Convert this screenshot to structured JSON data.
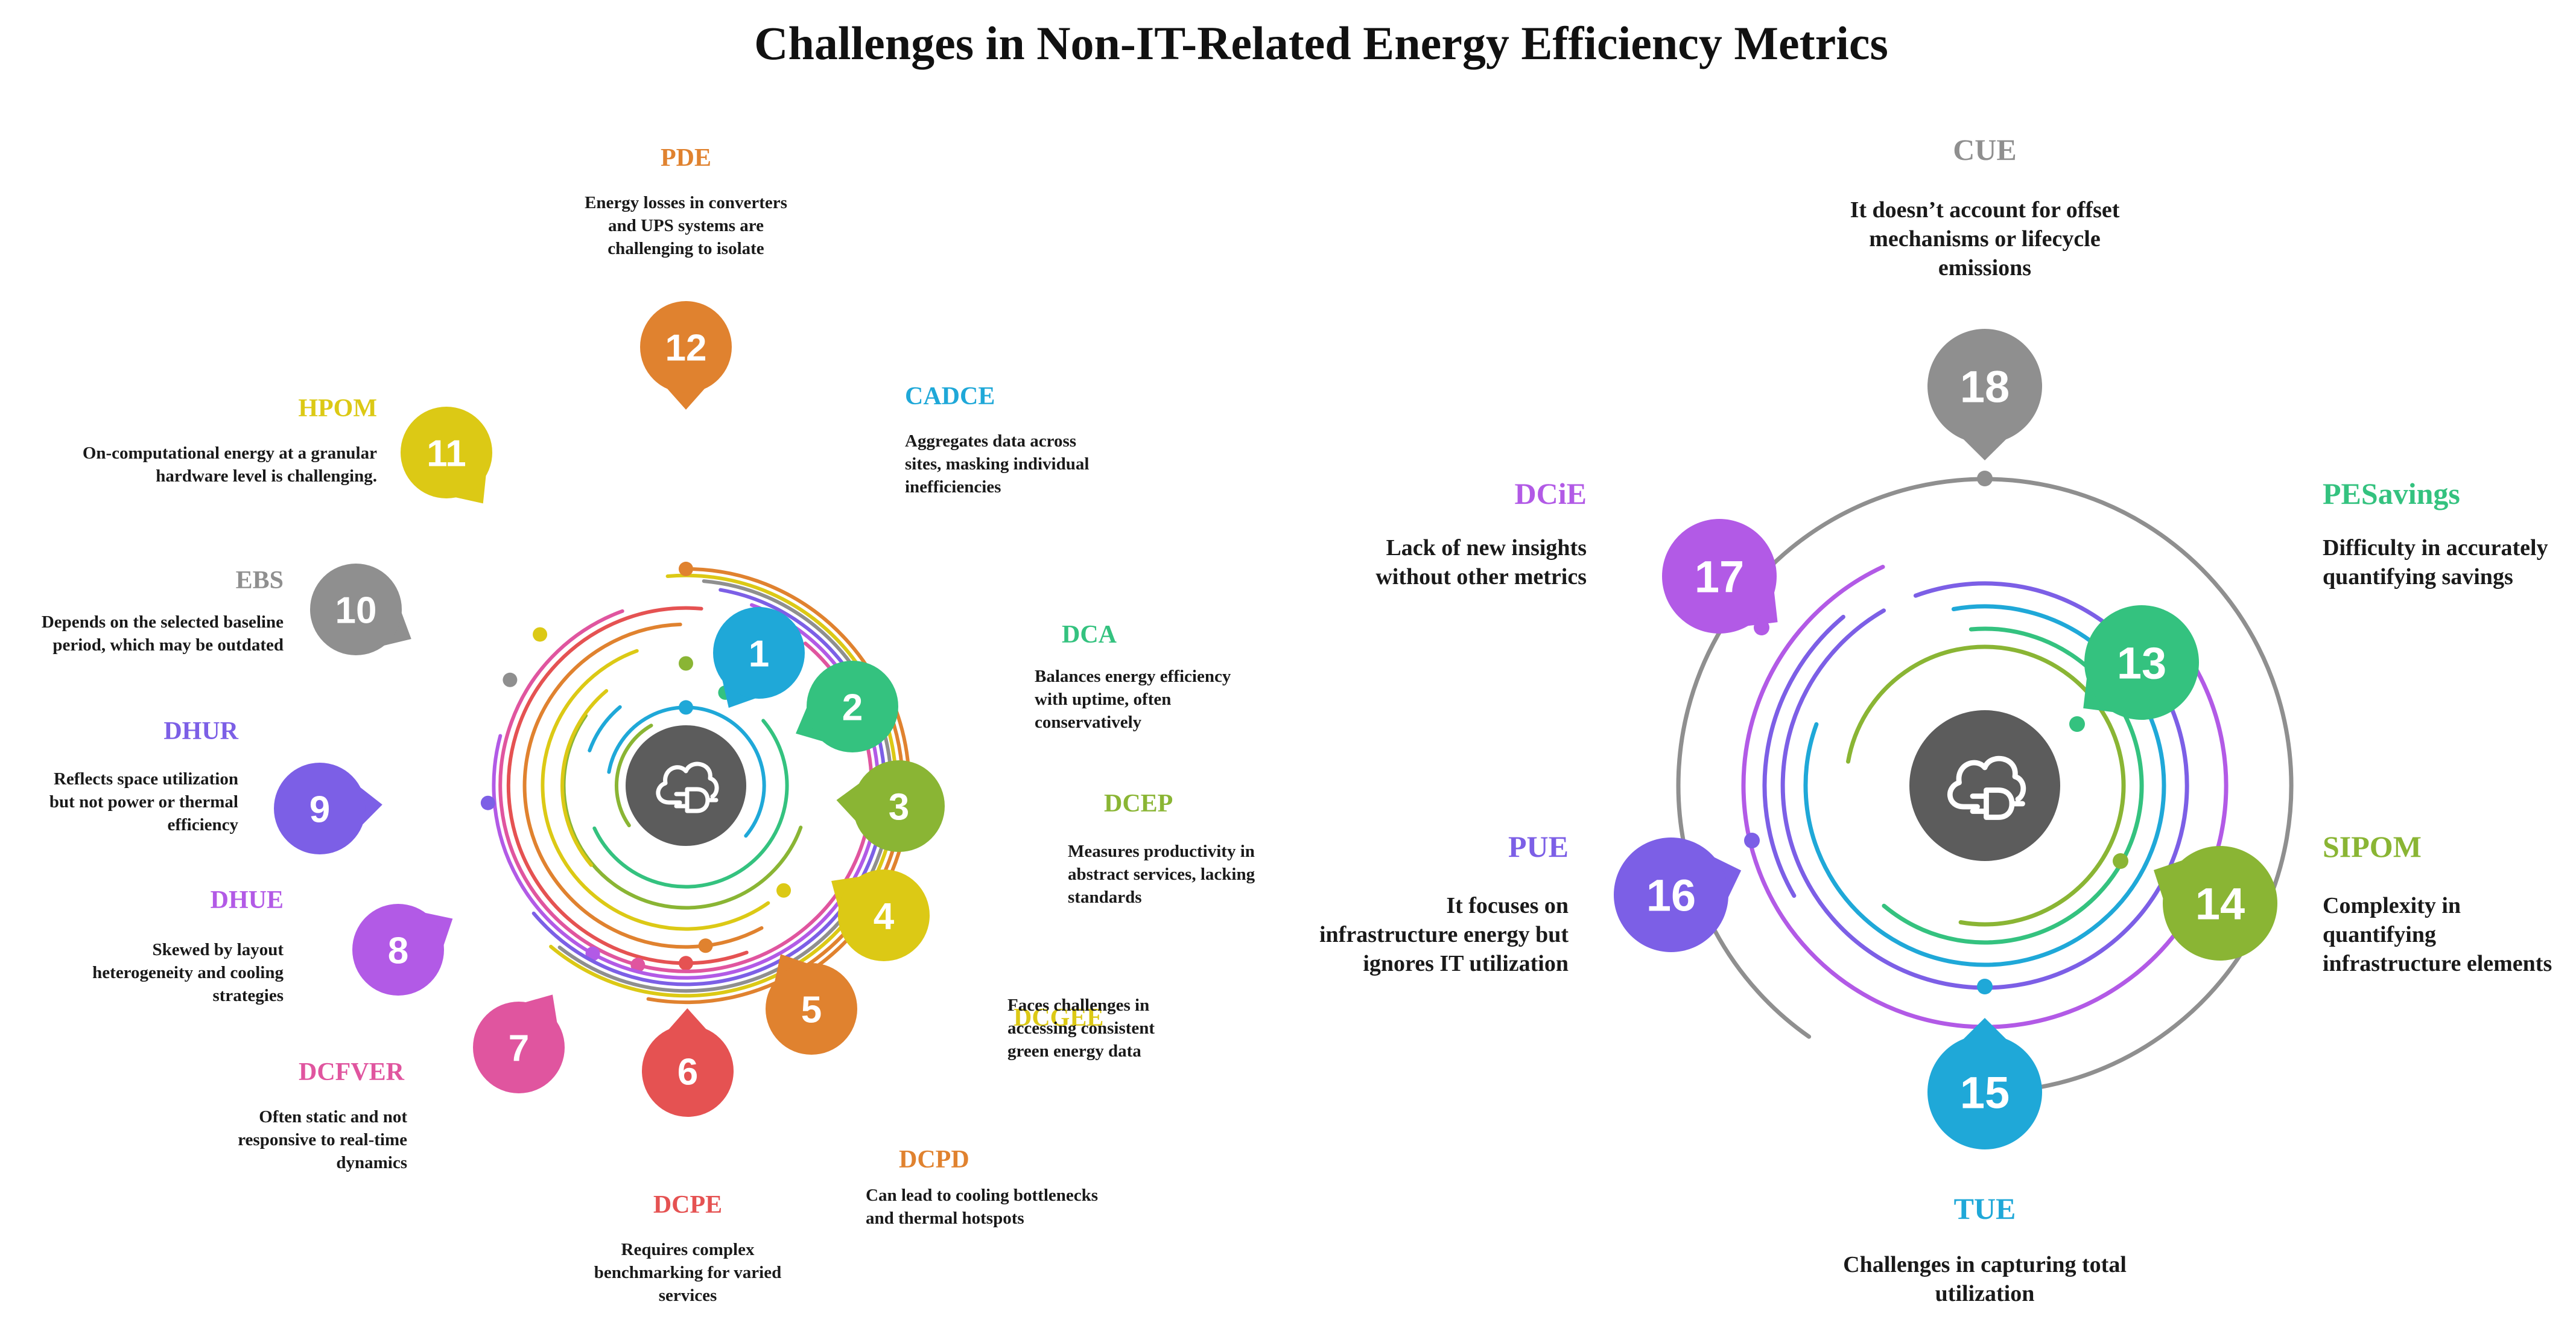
{
  "title": "Challenges in Non-IT-Related Energy Efficiency Metrics",
  "center_icon": "cloud-plug-icon",
  "left_diagram": {
    "items": [
      {
        "num": "1",
        "label": "CADCE",
        "color": "#1fa8d8",
        "desc": [
          "Aggregates data across",
          "sites, masking individual",
          "inefficiencies"
        ]
      },
      {
        "num": "2",
        "label": "DCA",
        "color": "#34c27f",
        "desc": [
          "Balances energy efficiency",
          "with uptime, often",
          "conservatively"
        ]
      },
      {
        "num": "3",
        "label": "DCEP",
        "color": "#8ab534",
        "desc": [
          "Measures productivity in",
          "abstract services, lacking",
          "standards"
        ]
      },
      {
        "num": "4",
        "label": "DCGEE",
        "color": "#dcc915",
        "desc": [
          "Faces challenges in",
          "accessing consistent",
          "green energy data"
        ]
      },
      {
        "num": "5",
        "label": "DCPD",
        "color": "#e0822f",
        "desc": [
          "Can lead to cooling bottlenecks",
          "and thermal hotspots"
        ]
      },
      {
        "num": "6",
        "label": "DCPE",
        "color": "#e55252",
        "desc": [
          "Requires complex",
          "benchmarking for varied",
          "services"
        ]
      },
      {
        "num": "7",
        "label": "DCFVER",
        "color": "#e0559f",
        "desc": [
          "Often static and not",
          "responsive to real-time",
          "dynamics"
        ]
      },
      {
        "num": "8",
        "label": "DHUE",
        "color": "#b25ae6",
        "desc": [
          "Skewed by layout",
          "heterogeneity and cooling",
          "strategies"
        ]
      },
      {
        "num": "9",
        "label": "DHUR",
        "color": "#7c5fe6",
        "desc": [
          "Reflects space utilization",
          "but not power or thermal",
          "efficiency"
        ]
      },
      {
        "num": "10",
        "label": "EBS",
        "color": "#8f8f8f",
        "desc": [
          "Depends on the selected baseline",
          "period, which may be outdated"
        ]
      },
      {
        "num": "11",
        "label": "HPOM",
        "color": "#dcc915",
        "desc": [
          "On-computational energy at a granular",
          "hardware level is challenging."
        ]
      },
      {
        "num": "12",
        "label": "PDE",
        "color": "#e0822f",
        "desc": [
          "Energy losses in converters",
          "and UPS systems are",
          "challenging to isolate"
        ]
      }
    ]
  },
  "right_diagram": {
    "items": [
      {
        "num": "13",
        "label": "PESavings",
        "color": "#34c27f",
        "desc": [
          "Difficulty in accurately",
          "quantifying savings"
        ]
      },
      {
        "num": "14",
        "label": "SIPOM",
        "color": "#8ab534",
        "desc": [
          "Complexity in",
          "quantifying",
          "infrastructure elements"
        ]
      },
      {
        "num": "15",
        "label": "TUE",
        "color": "#1fa8d8",
        "desc": [
          "Challenges in capturing total",
          "utilization"
        ]
      },
      {
        "num": "16",
        "label": "PUE",
        "color": "#7c5fe6",
        "desc": [
          "It focuses on",
          "infrastructure energy but",
          "ignores IT utilization"
        ]
      },
      {
        "num": "17",
        "label": "DCiE",
        "color": "#b25ae6",
        "desc": [
          "Lack of new insights",
          "without other metrics"
        ]
      },
      {
        "num": "18",
        "label": "CUE",
        "color": "#8f8f8f",
        "desc": [
          "It doesn’t account for offset",
          "mechanisms or lifecycle",
          "emissions"
        ]
      }
    ]
  }
}
